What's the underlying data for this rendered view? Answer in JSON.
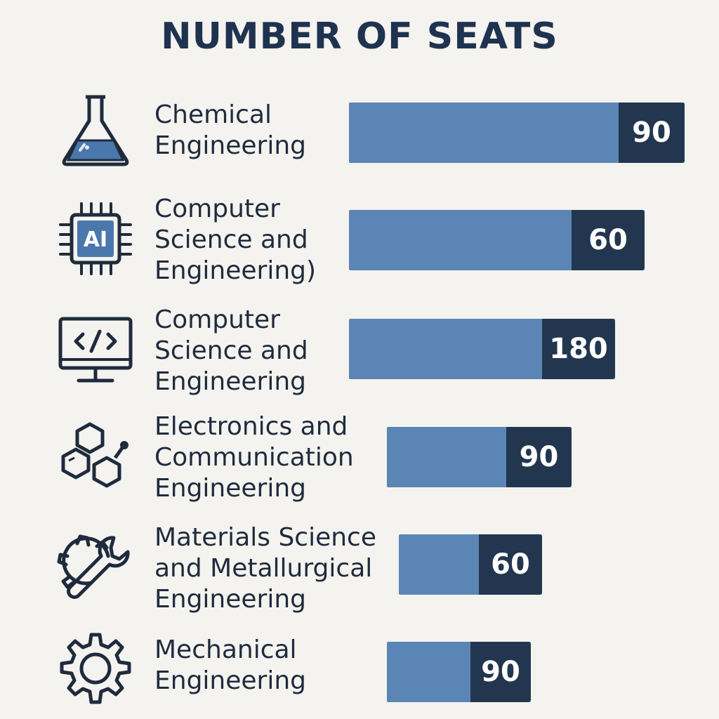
{
  "page": {
    "title": "NUMBER OF SEATS"
  },
  "chart_data": {
    "type": "bar",
    "orientation": "horizontal",
    "title": "NUMBER OF SEATS",
    "categories": [
      "Chemical Engineering",
      "Computer Science and Engineering)",
      "Computer Science and Engineering",
      "Electronics and Communication Engineering",
      "Materials Science and Metallurgical Engineering",
      "Mechanical Engineering"
    ],
    "values": [
      90,
      60,
      180,
      90,
      60,
      90
    ],
    "data_labels": [
      "90",
      "60",
      "180",
      "90",
      "60",
      "90"
    ],
    "icons": [
      "flask-icon",
      "ai-chip-icon",
      "code-monitor-icon",
      "hexagon-molecule-icon",
      "gear-wrench-icon",
      "gear-icon"
    ],
    "colors": {
      "bar": "#5b85b4",
      "cap": "#22364f",
      "text": "#1f2b3d"
    },
    "grid": false,
    "legend": "none"
  },
  "rows": [
    {
      "label_lines": [
        "Chemical",
        "Engineering"
      ],
      "value": "90"
    },
    {
      "label_lines": [
        "Computer",
        "Science and",
        "Engineering)"
      ],
      "value": "60"
    },
    {
      "label_lines": [
        "Computer",
        "Science and",
        "Engineering"
      ],
      "value": "180"
    },
    {
      "label_lines": [
        "Electronics and",
        "Communication",
        "Engineering"
      ],
      "value": "90"
    },
    {
      "label_lines": [
        "Materials Science",
        "and Metallurgical",
        "Engineering"
      ],
      "value": "60"
    },
    {
      "label_lines": [
        "Mechanical",
        "Engineering"
      ],
      "value": "90"
    }
  ]
}
